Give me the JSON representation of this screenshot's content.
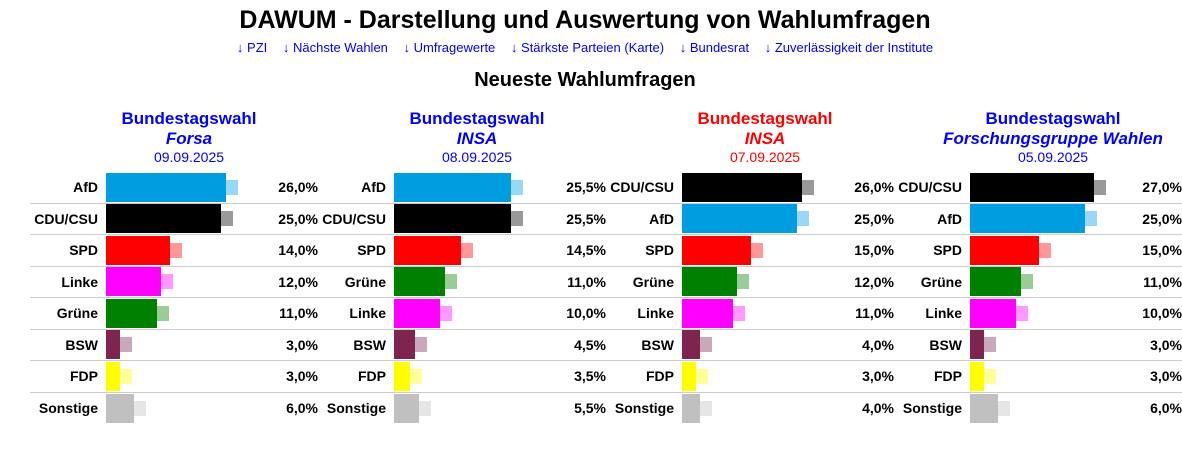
{
  "title": "DAWUM - Darstellung und Auswertung von Wahlumfragen",
  "nav": [
    "↓ PZI",
    "↓ Nächste Wahlen",
    "↓ Umfragewerte",
    "↓ Stärkste Parteien (Karte)",
    "↓ Bundesrat",
    "↓ Zuverlässigkeit der Institute"
  ],
  "subtitle": "Neueste Wahlumfragen",
  "colors": {
    "AfD": "#009ee0",
    "CDU/CSU": "#000000",
    "SPD": "#ff0000",
    "Linke": "#ff00ff",
    "Grüne": "#008000",
    "BSW": "#7d254f",
    "FDP": "#ffff00",
    "Sonstige": "#c0c0c0",
    "head_blue": "#0000ff",
    "head_red": "#ff0000"
  },
  "polls": [
    {
      "election": "Bundestagswahl",
      "institute": "Forsa",
      "date": "09.09.2025",
      "color": "#0000ff",
      "rows": [
        [
          "AfD",
          "26,0%",
          26
        ],
        [
          "CDU/CSU",
          "25,0%",
          25
        ],
        [
          "SPD",
          "14,0%",
          14
        ],
        [
          "Linke",
          "12,0%",
          12
        ],
        [
          "Grüne",
          "11,0%",
          11
        ],
        [
          "BSW",
          "3,0%",
          3
        ],
        [
          "FDP",
          "3,0%",
          3
        ],
        [
          "Sonstige",
          "6,0%",
          6
        ]
      ]
    },
    {
      "election": "Bundestagswahl",
      "institute": "INSA",
      "date": "08.09.2025",
      "color": "#0000ff",
      "rows": [
        [
          "AfD",
          "25,5%",
          25.5
        ],
        [
          "CDU/CSU",
          "25,5%",
          25.5
        ],
        [
          "SPD",
          "14,5%",
          14.5
        ],
        [
          "Grüne",
          "11,0%",
          11
        ],
        [
          "Linke",
          "10,0%",
          10
        ],
        [
          "BSW",
          "4,5%",
          4.5
        ],
        [
          "FDP",
          "3,5%",
          3.5
        ],
        [
          "Sonstige",
          "5,5%",
          5.5
        ]
      ]
    },
    {
      "election": "Bundestagswahl",
      "institute": "INSA",
      "date": "07.09.2025",
      "color": "#ff0000",
      "rows": [
        [
          "CDU/CSU",
          "26,0%",
          26
        ],
        [
          "AfD",
          "25,0%",
          25
        ],
        [
          "SPD",
          "15,0%",
          15
        ],
        [
          "Grüne",
          "12,0%",
          12
        ],
        [
          "Linke",
          "11,0%",
          11
        ],
        [
          "BSW",
          "4,0%",
          4
        ],
        [
          "FDP",
          "3,0%",
          3
        ],
        [
          "Sonstige",
          "4,0%",
          4
        ]
      ]
    },
    {
      "election": "Bundestagswahl",
      "institute": "Forschungsgruppe Wahlen",
      "date": "05.09.2025",
      "color": "#0000ff",
      "rows": [
        [
          "CDU/CSU",
          "27,0%",
          27
        ],
        [
          "AfD",
          "25,0%",
          25
        ],
        [
          "SPD",
          "15,0%",
          15
        ],
        [
          "Grüne",
          "11,0%",
          11
        ],
        [
          "Linke",
          "10,0%",
          10
        ],
        [
          "BSW",
          "3,0%",
          3
        ],
        [
          "FDP",
          "3,0%",
          3
        ],
        [
          "Sonstige",
          "6,0%",
          6
        ]
      ]
    }
  ]
}
